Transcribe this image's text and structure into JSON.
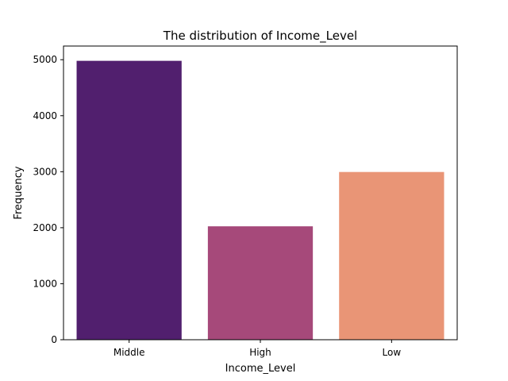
{
  "chart_data": {
    "type": "bar",
    "title": "The distribution of Income_Level",
    "xlabel": "Income_Level",
    "ylabel": "Frequency",
    "categories": [
      "Middle",
      "High",
      "Low"
    ],
    "values": [
      4980,
      2025,
      2995
    ],
    "colors": [
      "#511f6e",
      "#a6497a",
      "#e99576"
    ],
    "ylim": [
      0,
      5244
    ],
    "yticks": [
      0,
      1000,
      2000,
      3000,
      4000,
      5000
    ],
    "grid": false,
    "legend": "none"
  }
}
